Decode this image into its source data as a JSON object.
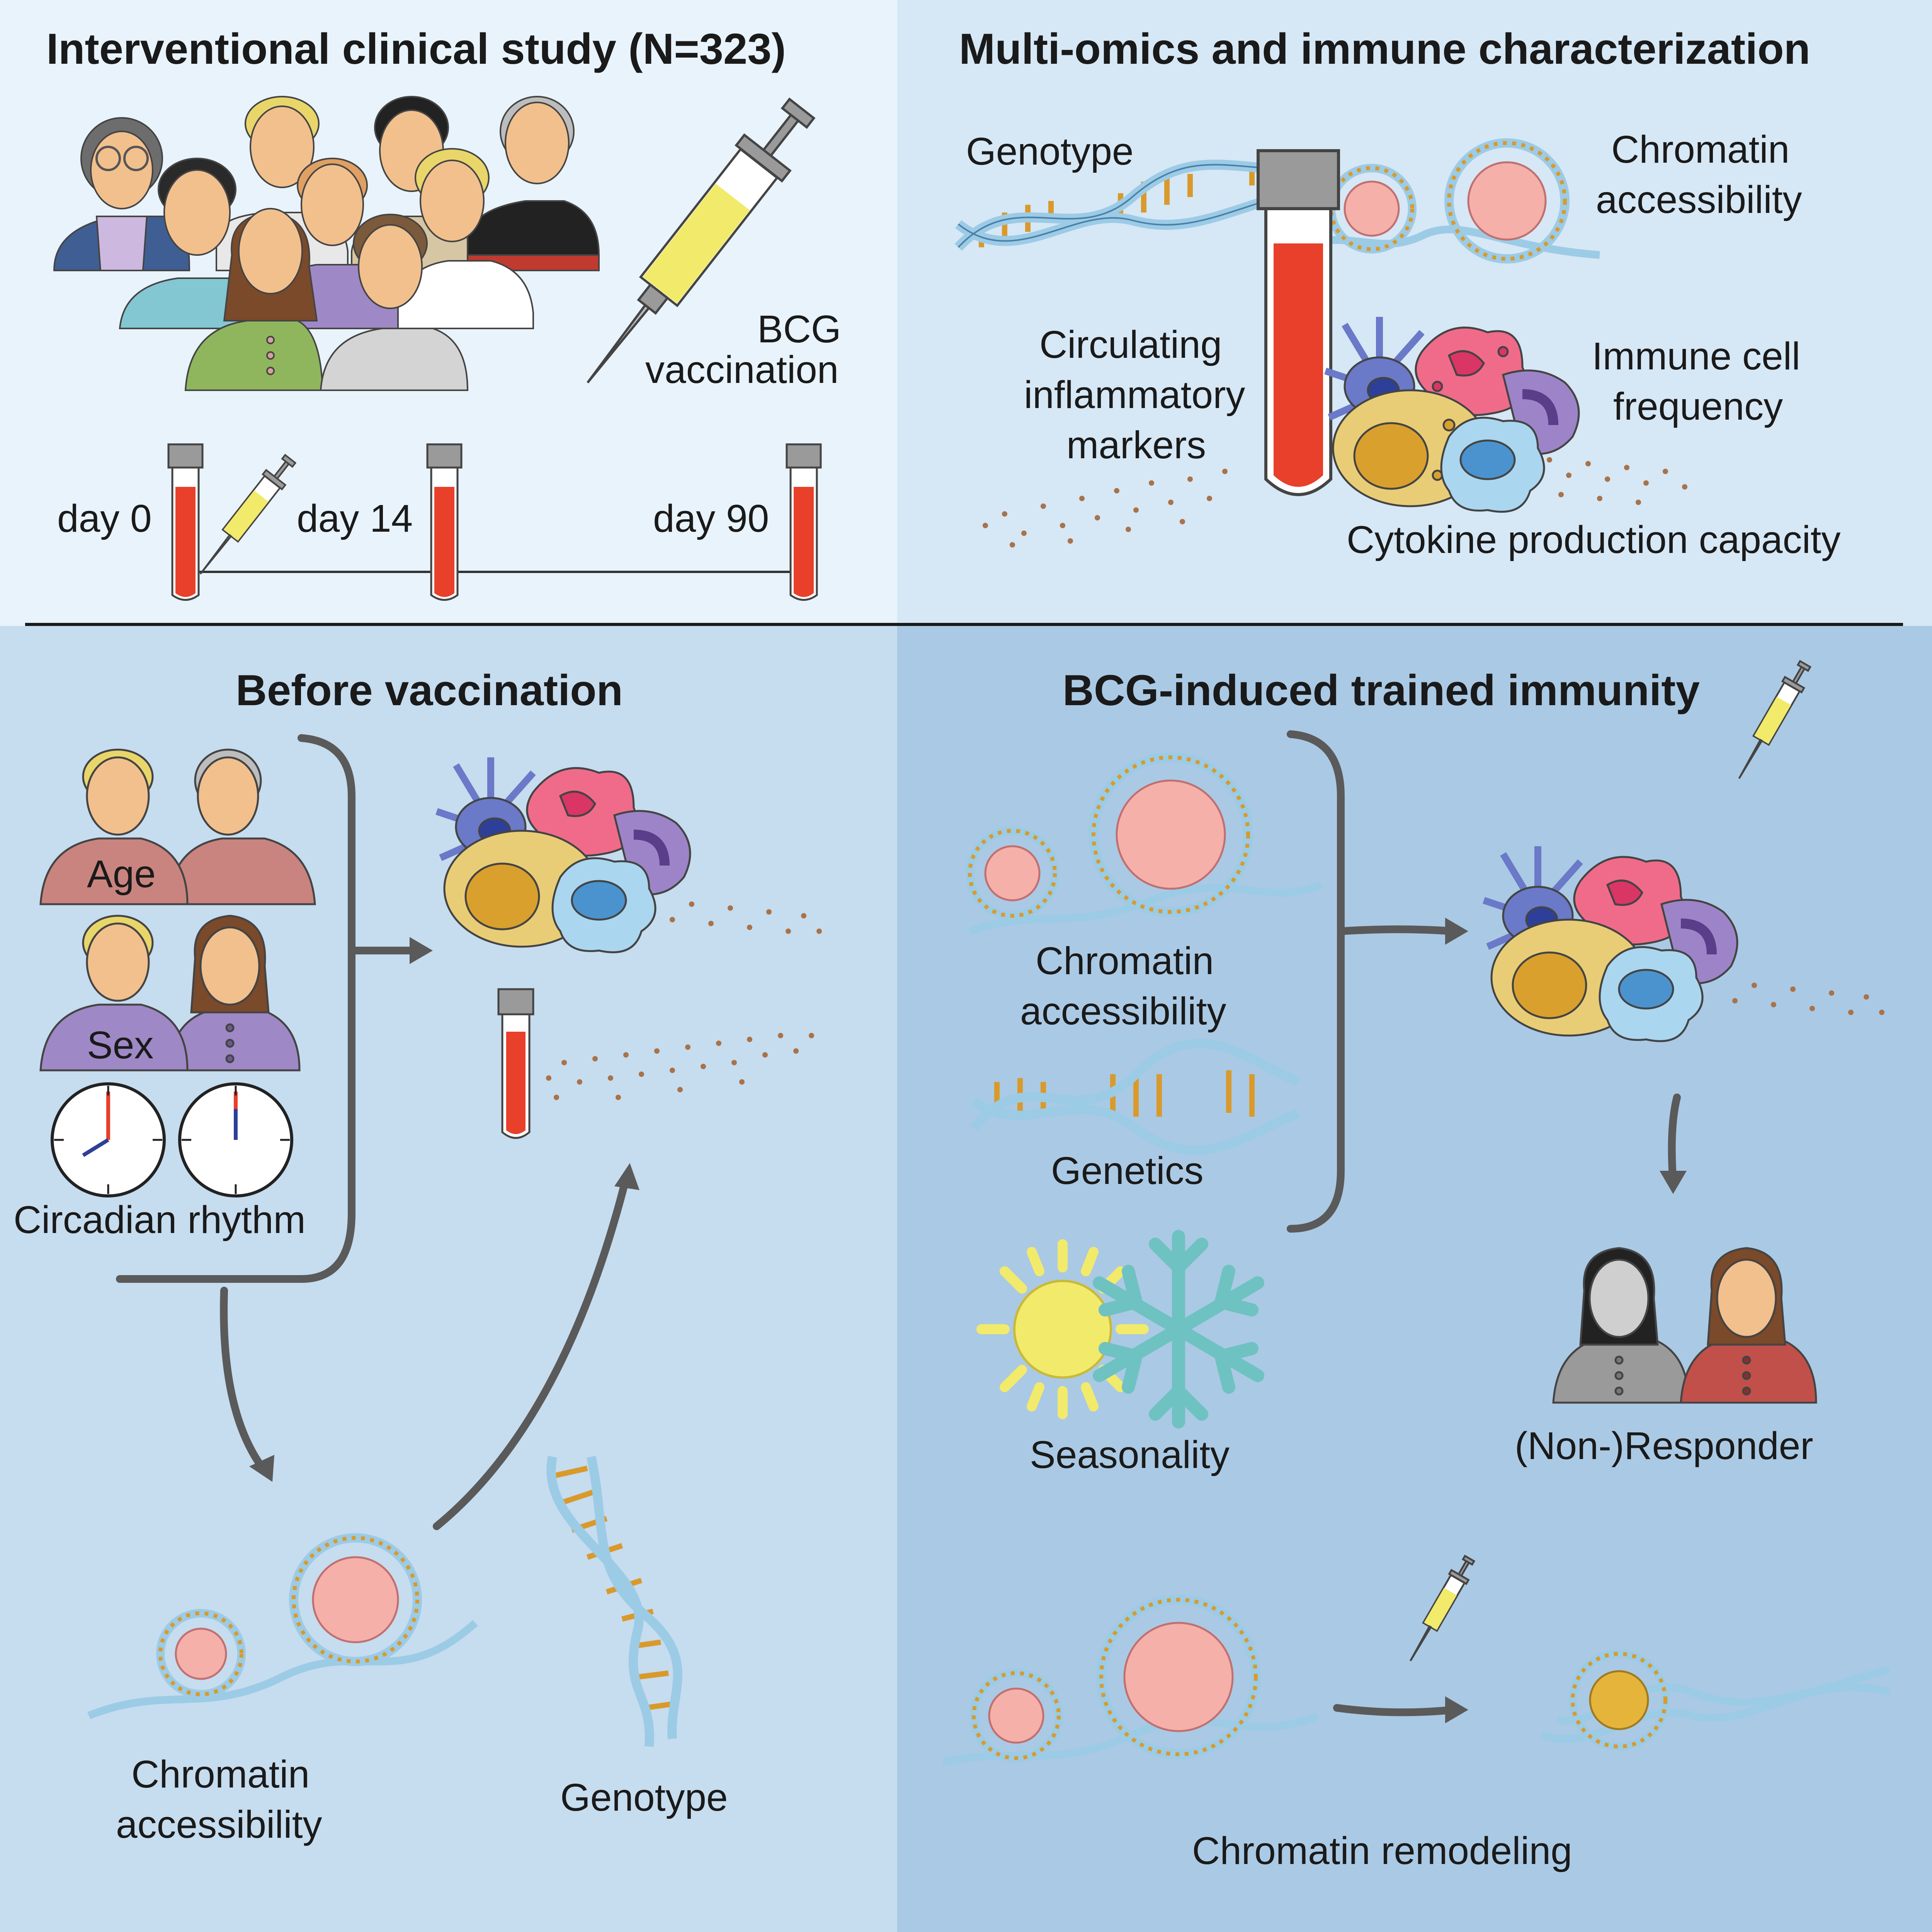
{
  "colors": {
    "panel_top_left": "#e8f3fb",
    "panel_top_right": "#d6e7f5",
    "panel_bottom_left": "#c6dcef",
    "panel_bottom_right": "#aac9e4",
    "blood": "#e8402a",
    "dna_strand": "#9ccbe6",
    "dna_rung": "#d99a2b",
    "nucleus": "#f5b0aa",
    "arrow": "#5a5a5a"
  },
  "study": {
    "title": "Interventional clinical study (N=323)",
    "vaccine_label_1": "BCG",
    "vaccine_label_2": "vaccination",
    "timepoints": [
      "day 0",
      "day 14",
      "day 90"
    ]
  },
  "omics": {
    "title": "Multi-omics and immune characterization",
    "genotype": "Genotype",
    "chromatin_1": "Chromatin",
    "chromatin_2": "accessibility",
    "markers_1": "Circulating",
    "markers_2": "inflammatory",
    "markers_3": "markers",
    "cellfreq_1": "Immune cell",
    "cellfreq_2": "frequency",
    "cytokine": "Cytokine production capacity"
  },
  "before": {
    "title": "Before vaccination",
    "age": "Age",
    "sex": "Sex",
    "circadian": "Circadian rhythm",
    "chromatin_1": "Chromatin",
    "chromatin_2": "accessibility",
    "genotype": "Genotype"
  },
  "trained": {
    "title": "BCG-induced trained immunity",
    "chromatin_1": "Chromatin",
    "chromatin_2": "accessibility",
    "genetics": "Genetics",
    "seasonality": "Seasonality",
    "responder": "(Non-)Responder",
    "remodeling": "Chromatin remodeling"
  }
}
